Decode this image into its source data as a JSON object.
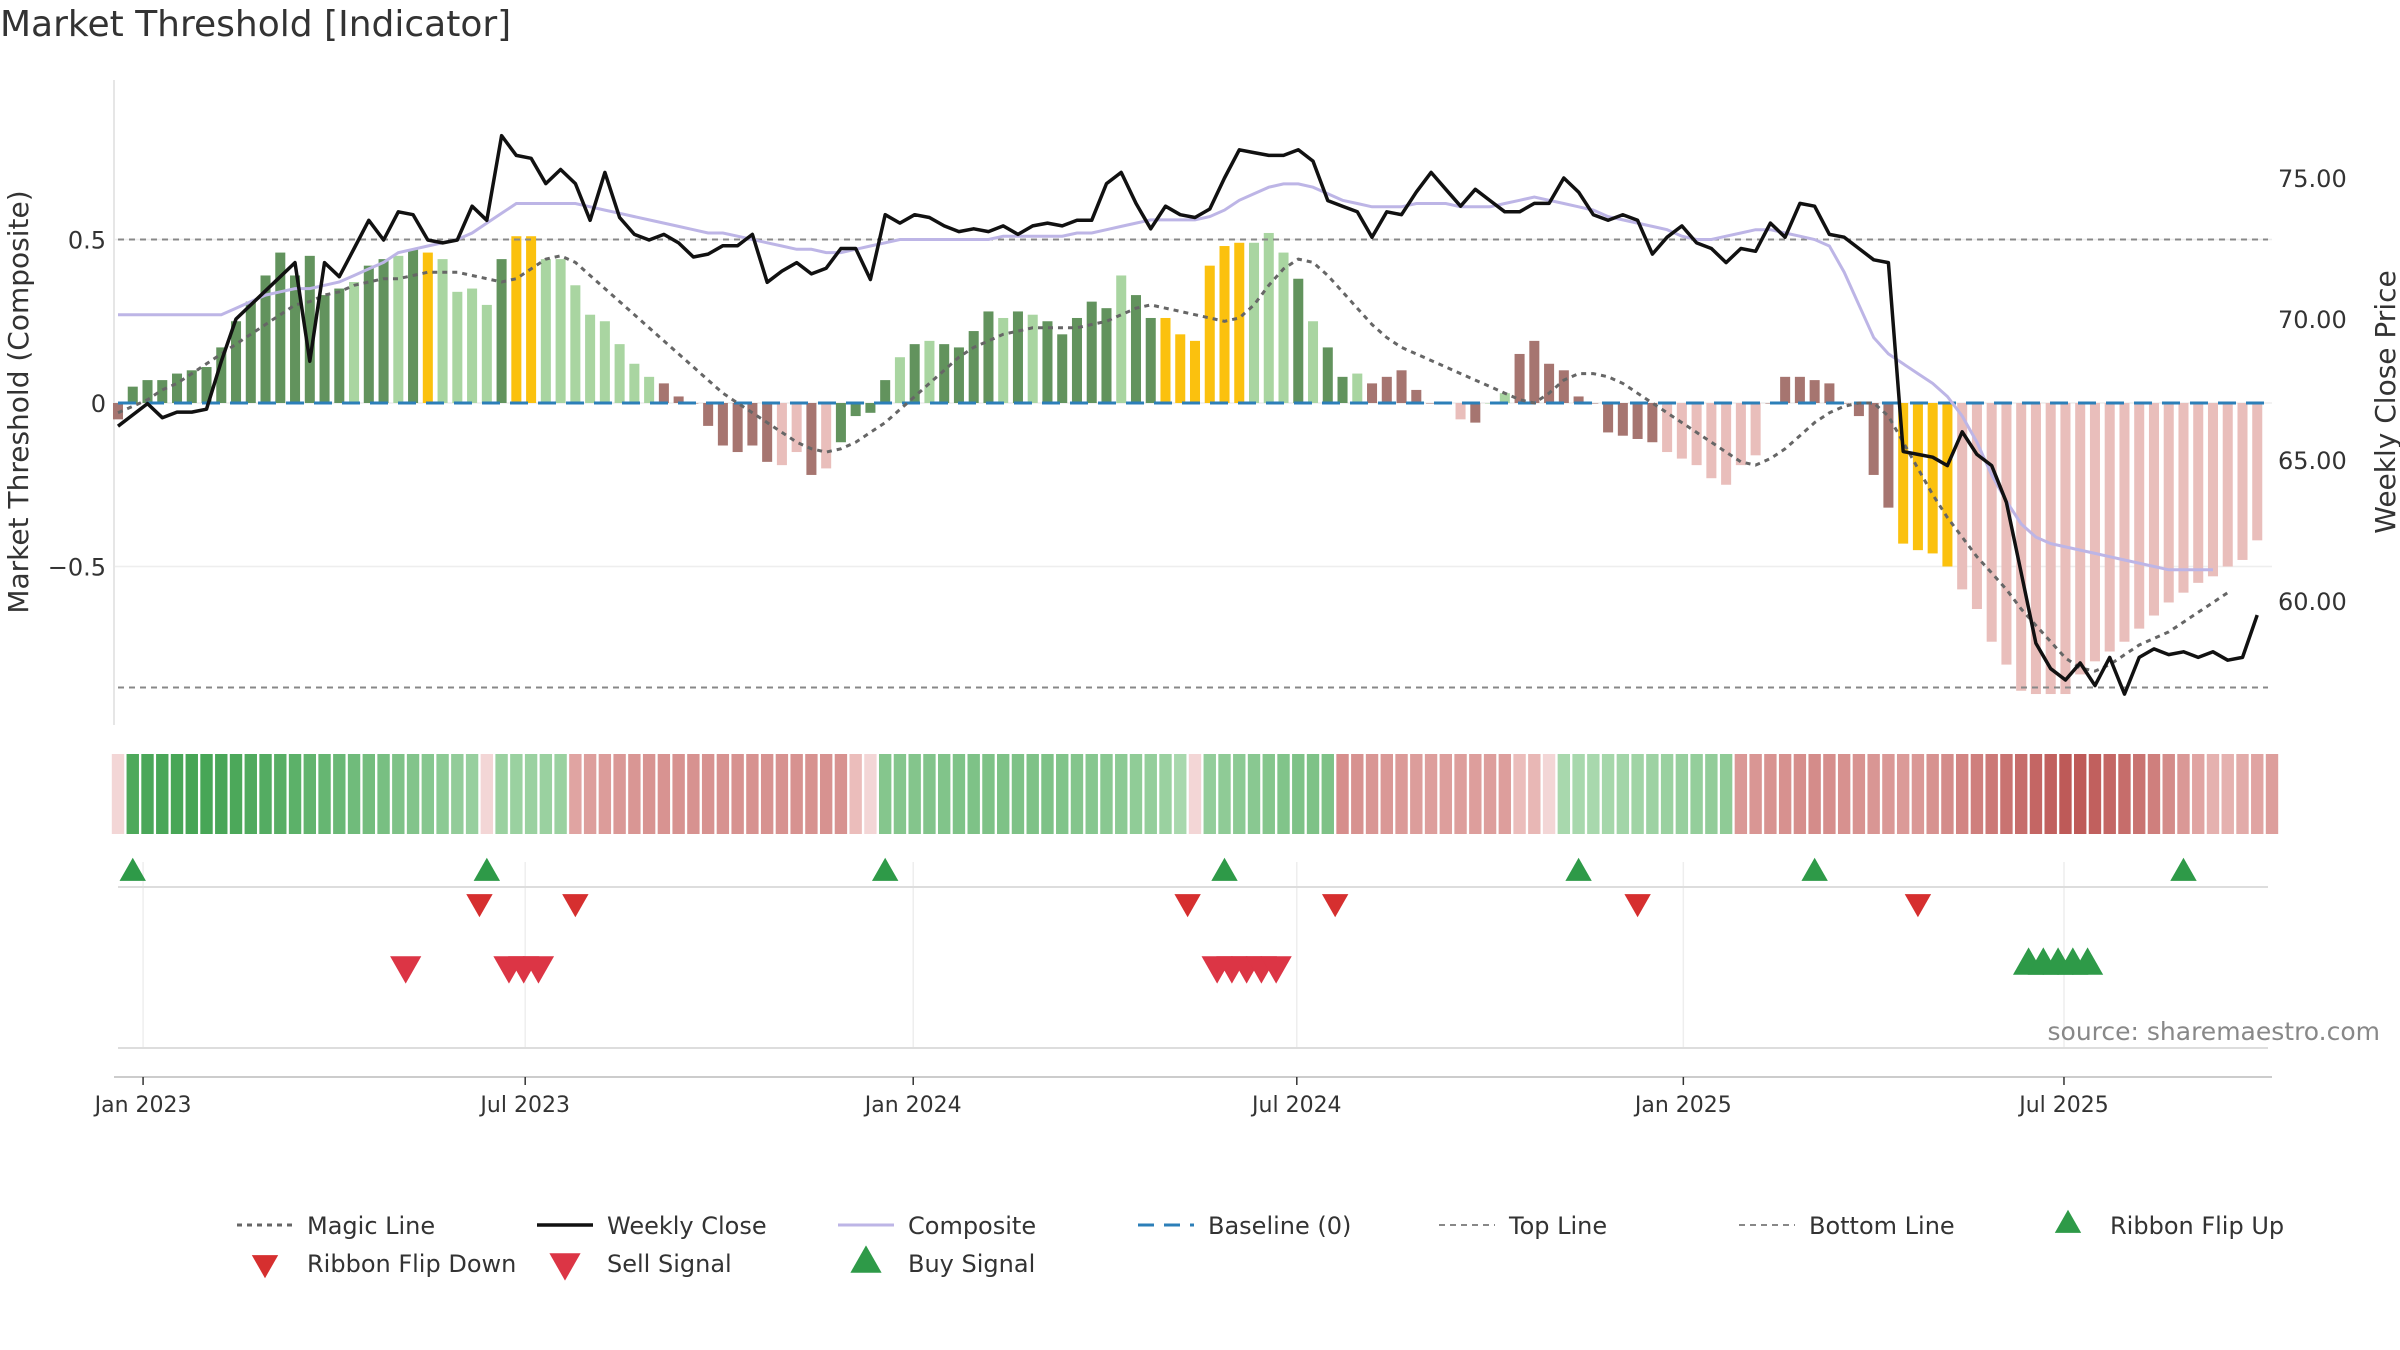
{
  "chart_data": {
    "type": "bar",
    "title": "Market Threshold [Indicator]",
    "ylabel": "Market Threshold (Composite)",
    "ylabel_right": "Weekly Close Price",
    "source": "source: sharemaestro.com",
    "ylim": [
      -1.0,
      1.0
    ],
    "ylim_right": [
      55.0,
      78.0
    ],
    "yticks": [
      {
        "v": 0.5,
        "label": "0.5"
      },
      {
        "v": 0,
        "label": "0"
      },
      {
        "v": -0.5,
        "label": "−0.5"
      }
    ],
    "yticks_right": [
      {
        "v": 75,
        "label": "75.00"
      },
      {
        "v": 70,
        "label": "70.00"
      },
      {
        "v": 65,
        "label": "65.00"
      },
      {
        "v": 60,
        "label": "60.00"
      }
    ],
    "top_line": 0.5,
    "bottom_line": -0.87,
    "baseline": 0,
    "x_start_week": -3,
    "x_end_week": 143,
    "xticks": [
      {
        "w": -1.3,
        "label": "Jan 2023"
      },
      {
        "w": 24.6,
        "label": "Jul 2023"
      },
      {
        "w": 50.9,
        "label": "Jan 2024"
      },
      {
        "w": 76.9,
        "label": "Jul 2024"
      },
      {
        "w": 103.1,
        "label": "Jan 2025"
      },
      {
        "w": 128.9,
        "label": "Jul 2025"
      }
    ],
    "colors": {
      "dark_green": "#62935d",
      "light_green": "#a9d5a1",
      "dark_red": "#a67570",
      "light_red": "#e9bebb",
      "gold": "#fbc10e",
      "weekly_close": "#111111",
      "composite": "#bdb5e6",
      "magic": "#666666",
      "baseline": "#2c7fb8",
      "ribbon_up": "#2e9a48",
      "ribbon_down": "#d62f2f",
      "buy": "#2e9a48",
      "sell": "#dc3545"
    },
    "bars": [
      -0.05,
      0.05,
      0.07,
      0.07,
      0.09,
      0.1,
      0.11,
      0.17,
      0.25,
      0.31,
      0.39,
      0.46,
      0.39,
      0.45,
      0.33,
      0.35,
      0.37,
      0.42,
      0.44,
      0.45,
      0.47,
      0.46,
      0.44,
      0.34,
      0.35,
      0.3,
      0.44,
      0.51,
      0.51,
      0.44,
      0.44,
      0.36,
      0.27,
      0.25,
      0.18,
      0.12,
      0.08,
      0.06,
      0.02,
      0,
      -0.07,
      -0.13,
      -0.15,
      -0.13,
      -0.18,
      -0.19,
      -0.15,
      -0.22,
      -0.2,
      -0.12,
      -0.04,
      -0.03,
      0.07,
      0.14,
      0.18,
      0.19,
      0.18,
      0.17,
      0.22,
      0.28,
      0.26,
      0.28,
      0.27,
      0.25,
      0.21,
      0.26,
      0.31,
      0.29,
      0.39,
      0.33,
      0.26,
      0.26,
      0.21,
      0.19,
      0.42,
      0.48,
      0.49,
      0.49,
      0.52,
      0.46,
      0.38,
      0.25,
      0.17,
      0.08,
      0.09,
      0.06,
      0.08,
      0.1,
      0.04,
      0,
      0,
      -0.05,
      -0.06,
      0,
      0.03,
      0.15,
      0.19,
      0.12,
      0.1,
      0.02,
      0,
      -0.09,
      -0.1,
      -0.11,
      -0.12,
      -0.15,
      -0.17,
      -0.19,
      -0.23,
      -0.25,
      -0.19,
      -0.16,
      0,
      0.08,
      0.08,
      0.07,
      0.06,
      0,
      -0.04,
      -0.22,
      -0.32,
      -0.43,
      -0.45,
      -0.46,
      -0.5,
      -0.57,
      -0.63,
      -0.73,
      -0.8,
      -0.88,
      -0.89,
      -0.89,
      -0.89,
      -0.83,
      -0.79,
      -0.76,
      -0.73,
      -0.69,
      -0.65,
      -0.61,
      -0.58,
      -0.55,
      -0.53,
      -0.5,
      -0.48,
      -0.42
    ],
    "bar_colors": "RGGGGGGGGGGGGGGGLGGLGYLLLLGYYLLLLLLLLRRRRRRRRLLRLGGGGLGLGGGGLGLGGGGGLGGYYYYYYLLLGLGGLRRRRRLLRLLRRRRRRRRRRLLLLLLLRRRRRRRRRYYYYLLLLLLLLLL",
    "magic": [
      -0.03,
      -0.01,
      0.01,
      0.04,
      0.06,
      0.09,
      0.12,
      0.15,
      0.18,
      0.21,
      0.24,
      0.27,
      0.3,
      0.31,
      0.33,
      0.34,
      0.36,
      0.37,
      0.38,
      0.38,
      0.39,
      0.4,
      0.4,
      0.4,
      0.39,
      0.38,
      0.37,
      0.38,
      0.41,
      0.44,
      0.45,
      0.43,
      0.39,
      0.35,
      0.31,
      0.27,
      0.23,
      0.19,
      0.15,
      0.11,
      0.07,
      0.03,
      0,
      -0.03,
      -0.06,
      -0.09,
      -0.12,
      -0.14,
      -0.15,
      -0.14,
      -0.12,
      -0.09,
      -0.06,
      -0.02,
      0.02,
      0.06,
      0.1,
      0.14,
      0.17,
      0.19,
      0.21,
      0.22,
      0.23,
      0.23,
      0.23,
      0.23,
      0.24,
      0.25,
      0.27,
      0.29,
      0.3,
      0.29,
      0.28,
      0.27,
      0.26,
      0.25,
      0.26,
      0.3,
      0.36,
      0.41,
      0.44,
      0.43,
      0.39,
      0.34,
      0.29,
      0.24,
      0.2,
      0.17,
      0.15,
      0.13,
      0.11,
      0.09,
      0.07,
      0.05,
      0.03,
      0.01,
      0,
      0.03,
      0.07,
      0.09,
      0.09,
      0.08,
      0.06,
      0.03,
      0,
      -0.03,
      -0.06,
      -0.09,
      -0.12,
      -0.15,
      -0.18,
      -0.19,
      -0.17,
      -0.14,
      -0.1,
      -0.06,
      -0.03,
      -0.01,
      0,
      0,
      -0.04,
      -0.12,
      -0.2,
      -0.28,
      -0.35,
      -0.41,
      -0.47,
      -0.52,
      -0.57,
      -0.63,
      -0.68,
      -0.73,
      -0.78,
      -0.81,
      -0.82,
      -0.8,
      -0.77,
      -0.74,
      -0.72,
      -0.7,
      -0.67,
      -0.64,
      -0.61,
      -0.58
    ],
    "composite": [
      0.27,
      0.27,
      0.27,
      0.27,
      0.27,
      0.27,
      0.27,
      0.27,
      0.29,
      0.31,
      0.33,
      0.34,
      0.35,
      0.35,
      0.36,
      0.37,
      0.39,
      0.41,
      0.43,
      0.46,
      0.47,
      0.48,
      0.49,
      0.5,
      0.52,
      0.55,
      0.58,
      0.61,
      0.61,
      0.61,
      0.61,
      0.61,
      0.6,
      0.59,
      0.58,
      0.57,
      0.56,
      0.55,
      0.54,
      0.53,
      0.52,
      0.52,
      0.51,
      0.5,
      0.49,
      0.48,
      0.47,
      0.47,
      0.46,
      0.46,
      0.47,
      0.48,
      0.49,
      0.5,
      0.5,
      0.5,
      0.5,
      0.5,
      0.5,
      0.5,
      0.51,
      0.51,
      0.51,
      0.51,
      0.51,
      0.52,
      0.52,
      0.53,
      0.54,
      0.55,
      0.56,
      0.56,
      0.56,
      0.56,
      0.57,
      0.59,
      0.62,
      0.64,
      0.66,
      0.67,
      0.67,
      0.66,
      0.64,
      0.62,
      0.61,
      0.6,
      0.6,
      0.6,
      0.61,
      0.61,
      0.61,
      0.6,
      0.6,
      0.6,
      0.61,
      0.62,
      0.63,
      0.62,
      0.61,
      0.6,
      0.59,
      0.57,
      0.56,
      0.55,
      0.54,
      0.53,
      0.51,
      0.5,
      0.5,
      0.51,
      0.52,
      0.53,
      0.53,
      0.52,
      0.51,
      0.5,
      0.48,
      0.4,
      0.3,
      0.2,
      0.15,
      0.12,
      0.09,
      0.06,
      0.02,
      -0.04,
      -0.12,
      -0.22,
      -0.3,
      -0.37,
      -0.41,
      -0.43,
      -0.44,
      -0.45,
      -0.46,
      -0.47,
      -0.48,
      -0.49,
      -0.5,
      -0.51,
      -0.51,
      -0.51,
      -0.51
    ],
    "weekly_close": [
      66.2,
      66.6,
      67.0,
      66.5,
      66.7,
      66.7,
      66.8,
      68.5,
      70.0,
      70.5,
      71.0,
      71.5,
      72.0,
      68.5,
      72.0,
      71.5,
      72.5,
      73.5,
      72.8,
      73.8,
      73.7,
      72.8,
      72.7,
      72.8,
      74.0,
      73.5,
      76.5,
      75.8,
      75.7,
      74.8,
      75.3,
      74.8,
      73.5,
      75.2,
      73.6,
      73.0,
      72.8,
      73.0,
      72.7,
      72.2,
      72.3,
      72.6,
      72.6,
      73.0,
      71.3,
      71.7,
      72.0,
      71.6,
      71.8,
      72.5,
      72.5,
      71.4,
      73.7,
      73.4,
      73.7,
      73.6,
      73.3,
      73.1,
      73.2,
      73.1,
      73.3,
      73.0,
      73.3,
      73.4,
      73.3,
      73.5,
      73.5,
      74.8,
      75.2,
      74.1,
      73.2,
      74.0,
      73.7,
      73.6,
      73.9,
      75.0,
      76.0,
      75.9,
      75.8,
      75.8,
      76.0,
      75.6,
      74.2,
      74.0,
      73.8,
      72.9,
      73.8,
      73.7,
      74.5,
      75.2,
      74.6,
      74.0,
      74.6,
      74.2,
      73.8,
      73.8,
      74.1,
      74.1,
      75.0,
      74.5,
      73.7,
      73.5,
      73.7,
      73.5,
      72.3,
      72.9,
      73.3,
      72.7,
      72.5,
      72.0,
      72.5,
      72.4,
      73.4,
      72.9,
      74.1,
      74.0,
      73.0,
      72.9,
      72.5,
      72.1,
      72.0,
      65.3,
      65.2,
      65.1,
      64.8,
      66.0,
      65.2,
      64.8,
      63.5,
      61.0,
      58.5,
      57.6,
      57.2,
      57.8,
      57.0,
      58.0,
      56.7,
      58.0,
      58.3,
      58.1,
      58.2,
      58.0,
      58.2,
      57.9,
      58.0,
      59.5
    ],
    "ribbon_shades": "LGGGGGGGGGGGGGGGGGGGGGGGGLGGGGGRRRRRRRRRRRRRRRRRRRRLGGGGGGGGGGGGGGGGGGGGGLGGGGGGGGGRRRRRRRRRRRRRRLGGGGGGGGGGGGRRRRRRRRRRRRRRRRRRRRRRRRRRRRRRRRRRRRRRRRRRRGGGGGG",
    "ribbon_intensity": [
      0.2,
      0.95,
      0.97,
      0.98,
      0.99,
      1.0,
      0.99,
      0.98,
      0.96,
      0.93,
      0.9,
      0.87,
      0.84,
      0.8,
      0.77,
      0.74,
      0.7,
      0.67,
      0.64,
      0.6,
      0.57,
      0.54,
      0.5,
      0.46,
      0.42,
      0.2,
      0.4,
      0.4,
      0.4,
      0.4,
      0.4,
      0.4,
      0.45,
      0.47,
      0.5,
      0.52,
      0.53,
      0.54,
      0.55,
      0.55,
      0.55,
      0.55,
      0.55,
      0.55,
      0.55,
      0.55,
      0.55,
      0.55,
      0.55,
      0.55,
      0.2,
      0.55,
      0.55,
      0.55,
      0.56,
      0.57,
      0.58,
      0.59,
      0.6,
      0.6,
      0.6,
      0.6,
      0.6,
      0.6,
      0.58,
      0.56,
      0.54,
      0.52,
      0.5,
      0.47,
      0.44,
      0.4,
      0.3,
      0.2,
      0.45,
      0.48,
      0.5,
      0.52,
      0.55,
      0.58,
      0.6,
      0.6,
      0.6,
      0.58,
      0.55,
      0.52,
      0.5,
      0.48,
      0.46,
      0.45,
      0.45,
      0.45,
      0.45,
      0.45,
      0.45,
      0.2,
      0.25,
      0.3,
      0.3,
      0.3,
      0.3,
      0.32,
      0.34,
      0.36,
      0.38,
      0.4,
      0.42,
      0.44,
      0.46,
      0.48,
      0.5,
      0.52,
      0.54,
      0.56,
      0.58,
      0.6,
      0.58,
      0.56,
      0.54,
      0.52,
      0.5,
      0.48,
      0.5,
      0.55,
      0.6,
      0.65,
      0.7,
      0.75,
      0.8,
      0.85,
      0.9,
      0.95,
      1.0,
      1.0,
      0.95,
      0.9,
      0.85,
      0.8,
      0.7,
      0.6,
      0.5,
      0.4,
      0.3,
      0.3,
      0.35,
      0.4,
      0.45
    ],
    "ribbon_flip_up": [
      -2,
      22,
      49,
      72,
      96,
      112,
      137
    ],
    "ribbon_flip_down": [
      21.5,
      28,
      69.5,
      79.5,
      100,
      119
    ],
    "sell_signals": [
      16.5,
      23.5,
      24.5,
      25.5,
      71.5,
      72.5,
      73.5,
      74.5,
      75.5
    ],
    "buy_signals": [
      126.5,
      127.5,
      128.5,
      129.5,
      130.5
    ],
    "legend": [
      "Magic Line",
      "Weekly Close",
      "Composite",
      "Baseline (0)",
      "Top Line",
      "Bottom Line",
      "Ribbon Flip Up",
      "Ribbon Flip Down",
      "Sell Signal",
      "Buy Signal"
    ]
  }
}
